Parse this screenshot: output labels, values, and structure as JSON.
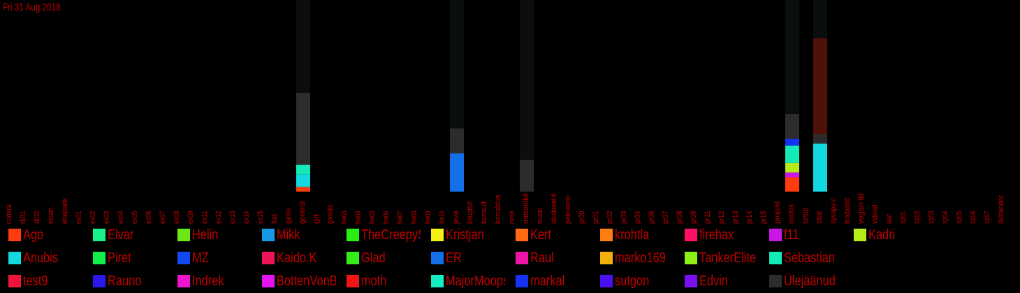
{
  "date_label": "Fri 31 Aug 2018",
  "chart_data": {
    "type": "bar",
    "stacked": true,
    "title": "",
    "xlabel": "",
    "ylabel": "",
    "ylim": [
      0,
      100
    ],
    "grid": false,
    "legend_placement": "bottom",
    "categories": [
      "codera",
      "dj01",
      "dj02",
      "eksam",
      "eltepank",
      "ex01",
      "ex02",
      "ex03",
      "ex04",
      "ex05",
      "ex06",
      "ex07",
      "ex08",
      "ex09",
      "ex11",
      "ex12",
      "ex13",
      "ex14",
      "ex15",
      "fud",
      "games",
      "general",
      "git",
      "gomoku",
      "hw03",
      "hw04",
      "hw05",
      "hw06",
      "hw07",
      "hw08",
      "hw09",
      "hw10",
      "java",
      "kaugtöö",
      "konsult",
      "korraldus",
      "meme",
      "mittetiikli",
      "music",
      "olulised-ti",
      "palmiomi-",
      "pr00",
      "pr01",
      "pr02",
      "pr03",
      "pr04",
      "pr06",
      "pr07",
      "pr08",
      "pr09",
      "pr11",
      "pr12",
      "pr13",
      "pr14",
      "pr15",
      "projekt",
      "random",
      "setup",
      "stat",
      "syvapy-c",
      "teadaand",
      "vegan-liit",
      "videod",
      "wat",
      "xp01",
      "xp02",
      "xp03",
      "xp04",
      "xp05",
      "xp06",
      "xp07",
      "üldsandec"
    ],
    "series": [
      {
        "name": "Ago",
        "color": "#ff3c0e",
        "values": {
          "general": 2.5,
          "random": 7.5
        }
      },
      {
        "name": "Elvar",
        "color": "#18f08a",
        "values": {}
      },
      {
        "name": "Helin",
        "color": "#6ce615",
        "values": {}
      },
      {
        "name": "Mikk",
        "color": "#169ae8",
        "values": {}
      },
      {
        "name": "TheCreepySh",
        "color": "#28ee14",
        "values": {}
      },
      {
        "name": "Kristjan",
        "color": "#f2f014",
        "values": {}
      },
      {
        "name": "Kert",
        "color": "#ff6a10",
        "values": {}
      },
      {
        "name": "krohtla",
        "color": "#ff7e14",
        "values": {}
      },
      {
        "name": "firehax",
        "color": "#ff1066",
        "values": {}
      },
      {
        "name": "f11",
        "color": "#cc16e6",
        "values": {
          "random": 2.5
        }
      },
      {
        "name": "Kadri",
        "color": "#b4ec1a",
        "values": {
          "random": 5
        }
      },
      {
        "name": "Anubis",
        "color": "#14d8e0",
        "values": {
          "general": 6.5,
          "stat": 25
        }
      },
      {
        "name": "Piret",
        "color": "#12ee4a",
        "values": {}
      },
      {
        "name": "MZ",
        "color": "#1448f0",
        "values": {}
      },
      {
        "name": "Kaido.K",
        "color": "#ee1458",
        "values": {}
      },
      {
        "name": "Glad",
        "color": "#36ec18",
        "values": {}
      },
      {
        "name": "ER",
        "color": "#1470e8",
        "values": {
          "java": 20
        }
      },
      {
        "name": "Raul",
        "color": "#ee14a8",
        "values": {}
      },
      {
        "name": "marko169",
        "color": "#f2b00e",
        "values": {}
      },
      {
        "name": "TankerElite",
        "color": "#8cf014",
        "values": {}
      },
      {
        "name": "Sebastian",
        "color": "#14eab6",
        "values": {
          "general": 5,
          "random": 9
        }
      },
      {
        "name": "test9",
        "color": "#f01438",
        "values": {}
      },
      {
        "name": "Rauno",
        "color": "#2a18ee",
        "values": {}
      },
      {
        "name": "Indrek",
        "color": "#ee14d0",
        "values": {}
      },
      {
        "name": "BottenVonBot",
        "color": "#e414ee",
        "values": {}
      },
      {
        "name": "moth",
        "color": "#f01414",
        "values": {}
      },
      {
        "name": "MajorMoopsy",
        "color": "#14ecc4",
        "values": {}
      },
      {
        "name": "markal",
        "color": "#1432f4",
        "values": {
          "random": 3.5
        }
      },
      {
        "name": "sutgon",
        "color": "#4a10f2",
        "values": {}
      },
      {
        "name": "Edvin",
        "color": "#7a10f2",
        "values": {}
      },
      {
        "name": "Ülejäänud",
        "color": "#2c2c2c",
        "values": {
          "general": 37.5,
          "java": 13,
          "mittetiikli": 16.5,
          "random": 13,
          "stat": 5
        }
      }
    ],
    "extra_segments": [
      {
        "category": "stat",
        "color": "#501208",
        "value": 50
      }
    ],
    "background_color": "#0b0e0e"
  }
}
